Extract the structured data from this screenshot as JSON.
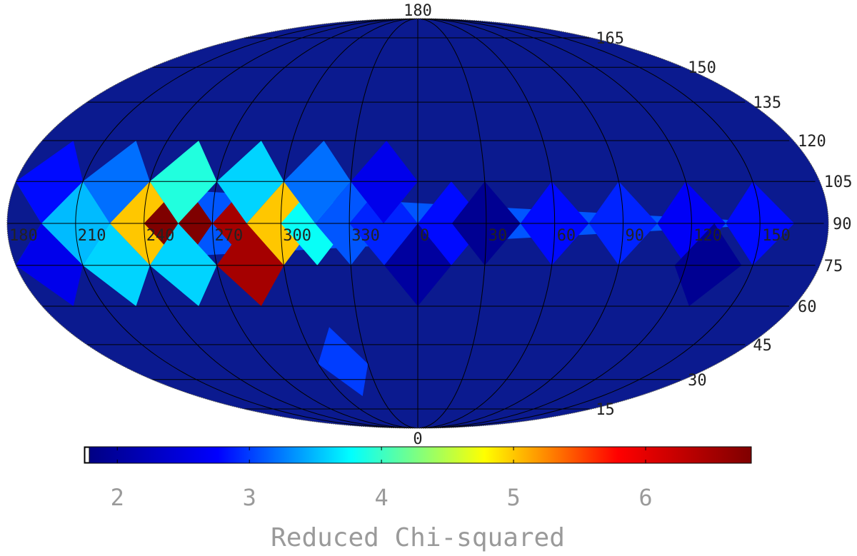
{
  "chart_data": {
    "type": "heatmap",
    "projection": "mollweide",
    "title": "",
    "colorbar": {
      "label": "Reduced Chi-squared",
      "ticks": [
        2,
        3,
        4,
        5,
        6
      ],
      "range": [
        1.75,
        6.8
      ],
      "colormap": [
        "#00007f",
        "#0000ff",
        "#00ffff",
        "#ffff00",
        "#ff0000",
        "#7f0000"
      ],
      "background_color": "#0b1a8f"
    },
    "longitude_labels": [
      {
        "text": "180",
        "lon": 180
      },
      {
        "text": "210",
        "lon": 210
      },
      {
        "text": "240",
        "lon": 240
      },
      {
        "text": "270",
        "lon": 270
      },
      {
        "text": "300",
        "lon": 300
      },
      {
        "text": "330",
        "lon": 330
      },
      {
        "text": "0",
        "lon": 0
      },
      {
        "text": "30",
        "lon": 30
      },
      {
        "text": "60",
        "lon": 60
      },
      {
        "text": "90",
        "lon": 90
      },
      {
        "text": "120",
        "lon": 120
      },
      {
        "text": "150",
        "lon": 150
      }
    ],
    "colatitude_labels": [
      {
        "text": "0",
        "colat": 0
      },
      {
        "text": "15",
        "colat": 15
      },
      {
        "text": "30",
        "colat": 30
      },
      {
        "text": "45",
        "colat": 45
      },
      {
        "text": "60",
        "colat": 60
      },
      {
        "text": "75",
        "colat": 75
      },
      {
        "text": "90",
        "colat": 90
      },
      {
        "text": "105",
        "colat": 105
      },
      {
        "text": "120",
        "colat": 120
      },
      {
        "text": "135",
        "colat": 135
      },
      {
        "text": "150",
        "colat": 150
      },
      {
        "text": "165",
        "colat": 165
      },
      {
        "text": "180",
        "colat": 180
      }
    ],
    "pixels": [
      {
        "lon": 180,
        "colat": 90,
        "value": 3.1
      },
      {
        "lon": 210,
        "colat": 90,
        "value": 3.5
      },
      {
        "lon": 240,
        "colat": 90,
        "value": 5.0
      },
      {
        "lon": 255,
        "colat": 90,
        "value": 6.8
      },
      {
        "lon": 285,
        "colat": 90,
        "value": 6.5
      },
      {
        "lon": 300,
        "colat": 90,
        "value": 5.0
      },
      {
        "lon": 315,
        "colat": 90,
        "value": 3.8
      },
      {
        "lon": 330,
        "colat": 90,
        "value": 3.1
      },
      {
        "lon": 345,
        "colat": 90,
        "value": 2.9
      },
      {
        "lon": 15,
        "colat": 90,
        "value": 2.8
      },
      {
        "lon": 30,
        "colat": 90,
        "value": 1.9
      },
      {
        "lon": 60,
        "colat": 90,
        "value": 2.8
      },
      {
        "lon": 90,
        "colat": 90,
        "value": 2.9
      },
      {
        "lon": 120,
        "colat": 90,
        "value": 2.7
      },
      {
        "lon": 150,
        "colat": 90,
        "value": 2.8
      },
      {
        "lon": 225,
        "colat": 75,
        "value": 3.6
      },
      {
        "lon": 255,
        "colat": 75,
        "value": 3.6
      },
      {
        "lon": 285,
        "colat": 75,
        "value": 6.5
      },
      {
        "lon": 195,
        "colat": 75,
        "value": 2.6
      },
      {
        "lon": 0,
        "colat": 75,
        "value": 2.0
      },
      {
        "lon": 130,
        "colat": 75,
        "value": 1.9
      },
      {
        "lon": 255,
        "colat": 105,
        "value": 3.9
      },
      {
        "lon": 225,
        "colat": 105,
        "value": 3.2
      },
      {
        "lon": 285,
        "colat": 105,
        "value": 3.6
      },
      {
        "lon": 315,
        "colat": 105,
        "value": 3.2
      },
      {
        "lon": 195,
        "colat": 105,
        "value": 2.8
      },
      {
        "lon": 345,
        "colat": 105,
        "value": 2.6
      },
      {
        "lon": 315,
        "colat": 37,
        "value": 3.0
      }
    ]
  }
}
